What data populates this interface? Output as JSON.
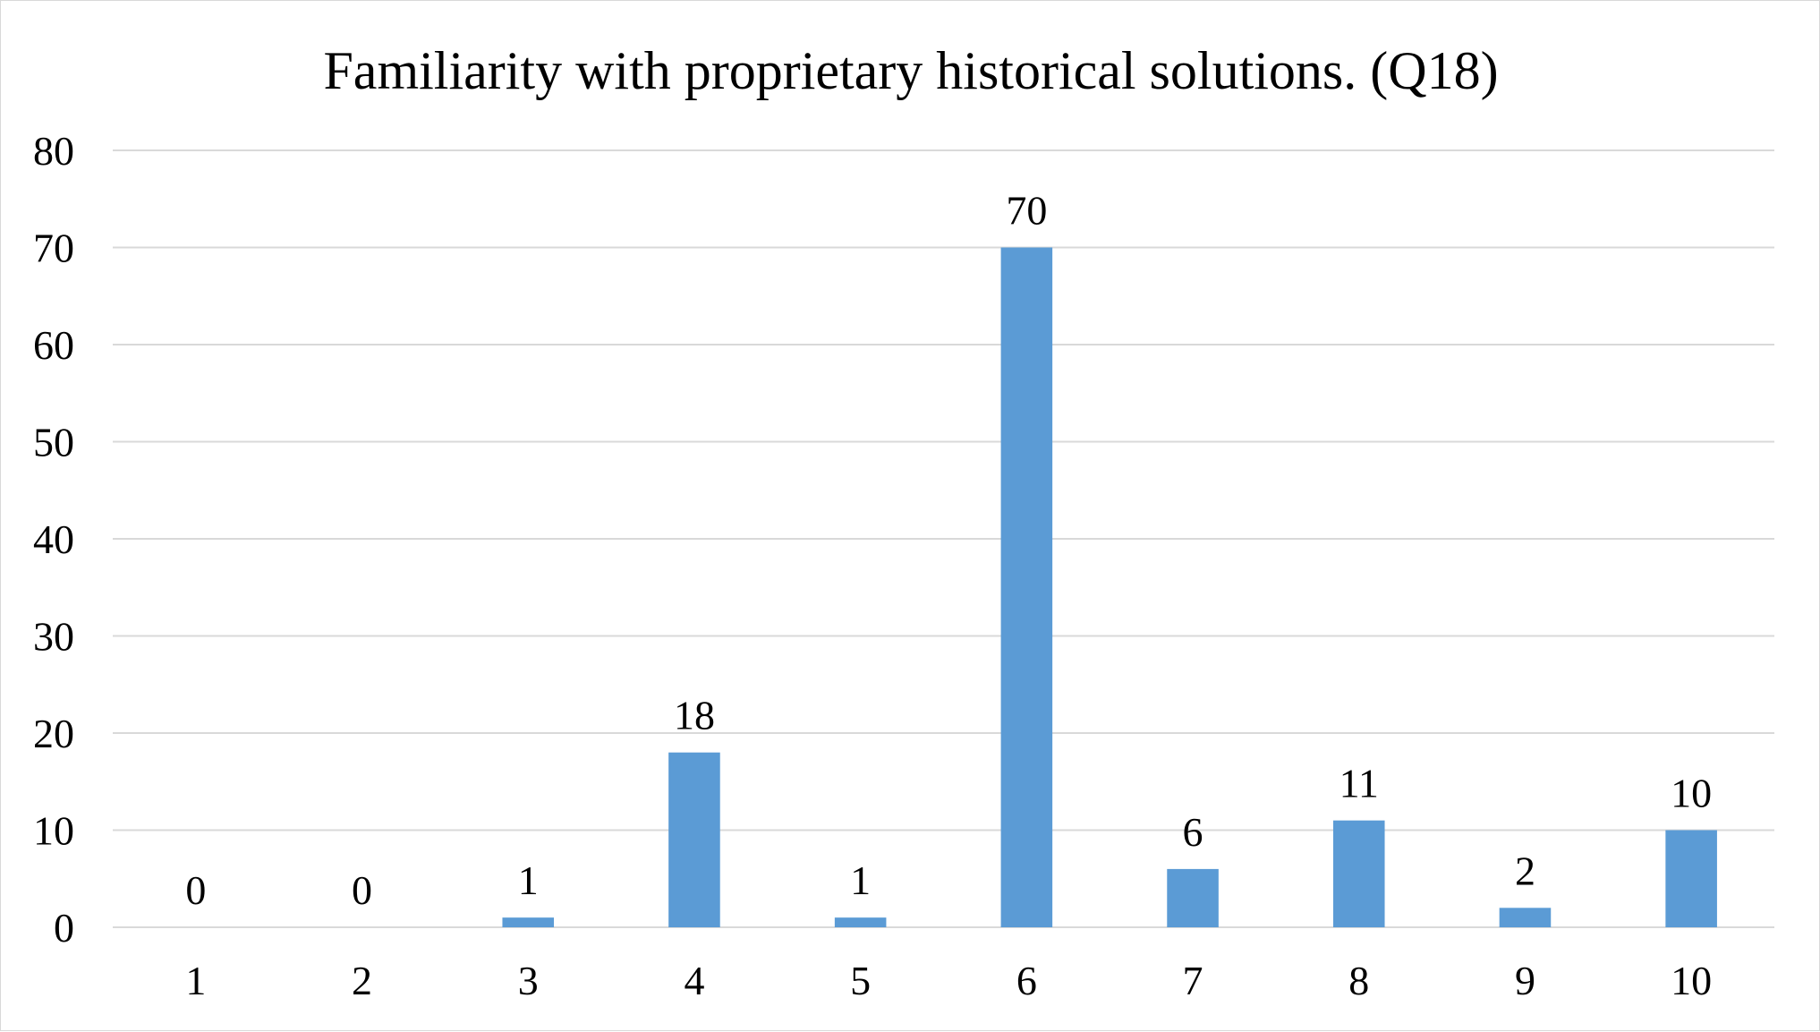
{
  "chart_data": {
    "type": "bar",
    "title": "Familiarity with proprietary historical solutions. (Q18)",
    "xlabel": "",
    "ylabel": "",
    "categories": [
      "1",
      "2",
      "3",
      "4",
      "5",
      "6",
      "7",
      "8",
      "9",
      "10"
    ],
    "values": [
      0,
      0,
      1,
      18,
      1,
      70,
      6,
      11,
      2,
      10
    ],
    "ylim": [
      0,
      80
    ],
    "yticks": [
      0,
      10,
      20,
      30,
      40,
      50,
      60,
      70,
      80
    ],
    "grid": true,
    "legend": "none",
    "data_labels": true,
    "bar_color": "#5b9bd5",
    "grid_color": "#d9d9d9"
  }
}
